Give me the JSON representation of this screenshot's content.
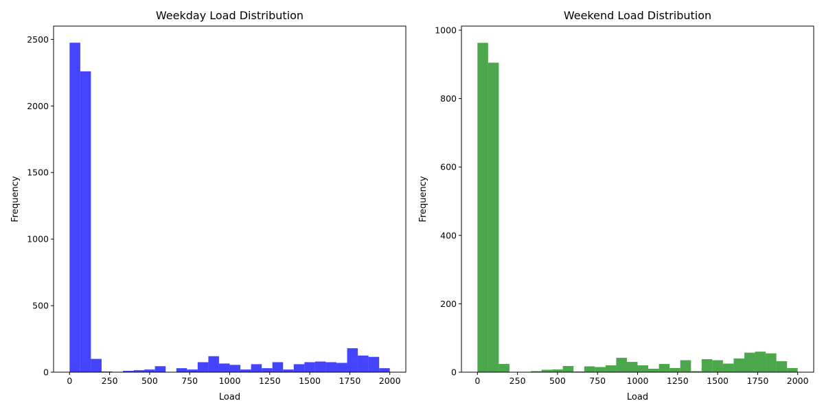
{
  "chart_data": [
    {
      "type": "bar",
      "title": "Weekday Load Distribution",
      "xlabel": "Load",
      "ylabel": "Frequency",
      "color": "#4444ff",
      "bin_start": 0,
      "bin_width": 66.67,
      "values": [
        2475,
        2260,
        100,
        5,
        0,
        10,
        15,
        20,
        45,
        0,
        30,
        20,
        75,
        120,
        65,
        55,
        20,
        60,
        30,
        75,
        20,
        60,
        75,
        80,
        75,
        70,
        180,
        125,
        115,
        30
      ],
      "xlim": [
        -100,
        2100
      ],
      "ylim": [
        0,
        2600
      ],
      "xticks": [
        0,
        250,
        500,
        750,
        1000,
        1250,
        1500,
        1750,
        2000
      ],
      "yticks": [
        0,
        500,
        1000,
        1500,
        2000,
        2500
      ]
    },
    {
      "type": "bar",
      "title": "Weekend Load Distribution",
      "xlabel": "Load",
      "ylabel": "Frequency",
      "color": "#4ca64c",
      "bin_start": 0,
      "bin_width": 66.67,
      "values": [
        963,
        905,
        24,
        0,
        0,
        3,
        7,
        8,
        18,
        2,
        17,
        15,
        20,
        42,
        30,
        20,
        10,
        24,
        12,
        35,
        3,
        38,
        35,
        25,
        40,
        57,
        60,
        55,
        32,
        12
      ],
      "xlim": [
        -100,
        2100
      ],
      "ylim": [
        0,
        1012
      ],
      "xticks": [
        0,
        250,
        500,
        750,
        1000,
        1250,
        1500,
        1750,
        2000
      ],
      "yticks": [
        0,
        200,
        400,
        600,
        800,
        1000
      ]
    }
  ]
}
